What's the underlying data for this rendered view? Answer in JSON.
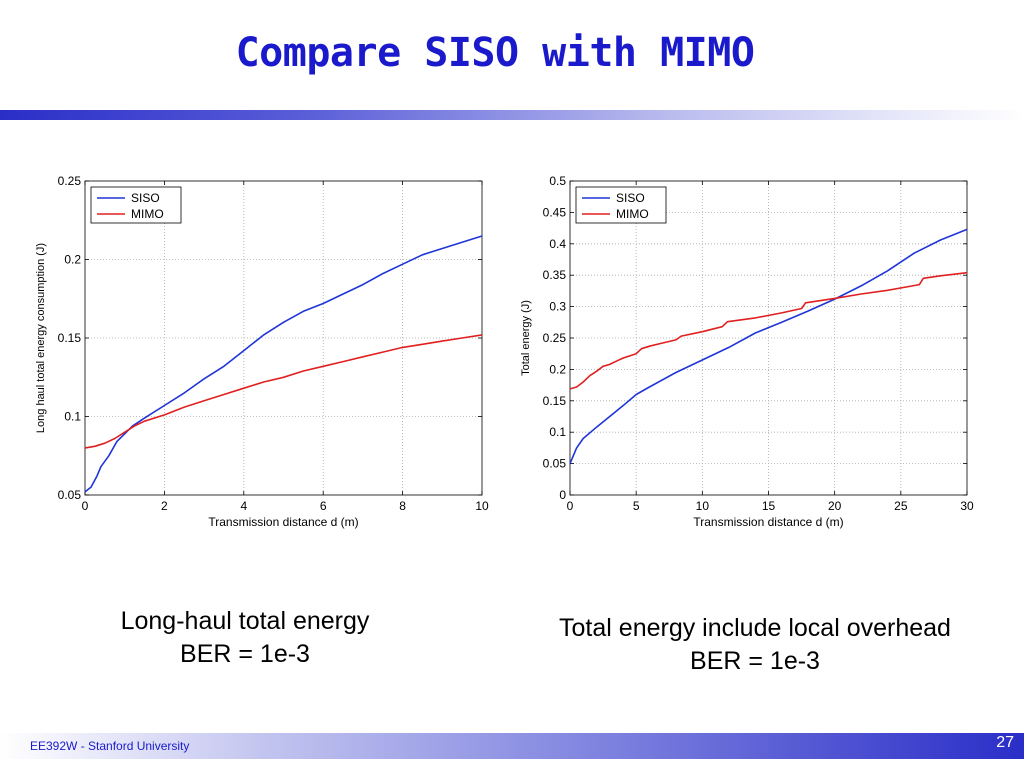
{
  "slide": {
    "title": "Compare SISO with MIMO",
    "footer": "EE392W - Stanford University",
    "page_number": "27"
  },
  "captions": {
    "left": [
      "Long-haul total energy",
      "BER = 1e-3"
    ],
    "right": [
      "Total energy include local overhead",
      "BER = 1e-3"
    ]
  },
  "colors": {
    "title": "#1a1acc",
    "siso": "#1f35d8",
    "mimo": "#e02020"
  },
  "chart_data": [
    {
      "type": "line",
      "xlabel": "Transmission distance d (m)",
      "ylabel": "Long haul total energy consumption (J)",
      "xlim": [
        0,
        10
      ],
      "ylim": [
        0.05,
        0.25
      ],
      "xticks": [
        0,
        2,
        4,
        6,
        8,
        10
      ],
      "yticks": [
        0.05,
        0.1,
        0.15,
        0.2,
        0.25
      ],
      "xtick_labels": [
        "0",
        "2",
        "4",
        "6",
        "8",
        "10"
      ],
      "ytick_labels": [
        "0.05",
        "0.1",
        "0.15",
        "0.2",
        "0.25"
      ],
      "grid": true,
      "legend_position": "top-left",
      "series": [
        {
          "name": "SISO",
          "color": "#1f35d8",
          "x": [
            0,
            0.15,
            0.3,
            0.4,
            0.6,
            0.8,
            1.0,
            1.2,
            1.5,
            2.0,
            2.5,
            3.0,
            3.5,
            4.0,
            4.5,
            5.0,
            5.5,
            6.0,
            6.5,
            7.0,
            7.5,
            8.0,
            8.5,
            9.0,
            9.5,
            10.0
          ],
          "y": [
            0.052,
            0.055,
            0.062,
            0.068,
            0.075,
            0.084,
            0.089,
            0.094,
            0.099,
            0.107,
            0.115,
            0.124,
            0.132,
            0.142,
            0.152,
            0.16,
            0.167,
            0.172,
            0.178,
            0.184,
            0.191,
            0.197,
            0.203,
            0.207,
            0.211,
            0.215
          ]
        },
        {
          "name": "MIMO",
          "color": "#e02020",
          "x": [
            0,
            0.25,
            0.5,
            0.75,
            1.0,
            1.25,
            1.5,
            2.0,
            2.5,
            3.0,
            3.5,
            4.0,
            4.5,
            5.0,
            5.5,
            6.0,
            6.5,
            7.0,
            7.5,
            8.0,
            8.5,
            9.0,
            9.5,
            10.0
          ],
          "y": [
            0.08,
            0.081,
            0.083,
            0.086,
            0.09,
            0.094,
            0.097,
            0.101,
            0.106,
            0.11,
            0.114,
            0.118,
            0.122,
            0.125,
            0.129,
            0.132,
            0.135,
            0.138,
            0.141,
            0.144,
            0.146,
            0.148,
            0.15,
            0.152
          ]
        }
      ]
    },
    {
      "type": "line",
      "xlabel": "Transmission distance d (m)",
      "ylabel": "Total energy (J)",
      "xlim": [
        0,
        30
      ],
      "ylim": [
        0,
        0.5
      ],
      "xticks": [
        0,
        5,
        10,
        15,
        20,
        25,
        30
      ],
      "yticks": [
        0,
        0.05,
        0.1,
        0.15,
        0.2,
        0.25,
        0.3,
        0.35,
        0.4,
        0.45,
        0.5
      ],
      "xtick_labels": [
        "0",
        "5",
        "10",
        "15",
        "20",
        "25",
        "30"
      ],
      "ytick_labels": [
        "0",
        "0.05",
        "0.1",
        "0.15",
        "0.2",
        "0.25",
        "0.3",
        "0.35",
        "0.4",
        "0.45",
        "0.5"
      ],
      "grid": true,
      "legend_position": "top-left",
      "series": [
        {
          "name": "SISO",
          "color": "#1f35d8",
          "x": [
            0,
            0.5,
            1,
            2,
            3,
            4,
            5,
            6,
            8,
            10,
            12,
            14,
            16,
            18,
            20,
            22,
            24,
            26,
            28,
            30
          ],
          "y": [
            0.05,
            0.075,
            0.09,
            0.108,
            0.125,
            0.142,
            0.16,
            0.172,
            0.195,
            0.215,
            0.235,
            0.258,
            0.275,
            0.293,
            0.312,
            0.333,
            0.357,
            0.385,
            0.406,
            0.423
          ]
        },
        {
          "name": "MIMO",
          "color": "#e02020",
          "x": [
            0,
            0.5,
            1.0,
            1.5,
            2.0,
            2.5,
            3.0,
            3.5,
            4.0,
            5.0,
            5.4,
            6.0,
            7.0,
            8.0,
            8.4,
            10.0,
            11.5,
            11.9,
            14.0,
            16.0,
            17.5,
            17.8,
            20.0,
            22.0,
            24.0,
            26.4,
            26.7,
            28.0,
            30.0
          ],
          "y": [
            0.169,
            0.172,
            0.18,
            0.19,
            0.197,
            0.205,
            0.208,
            0.213,
            0.218,
            0.225,
            0.233,
            0.237,
            0.242,
            0.247,
            0.253,
            0.26,
            0.268,
            0.276,
            0.282,
            0.29,
            0.297,
            0.306,
            0.313,
            0.32,
            0.326,
            0.335,
            0.345,
            0.349,
            0.354
          ]
        }
      ]
    }
  ]
}
